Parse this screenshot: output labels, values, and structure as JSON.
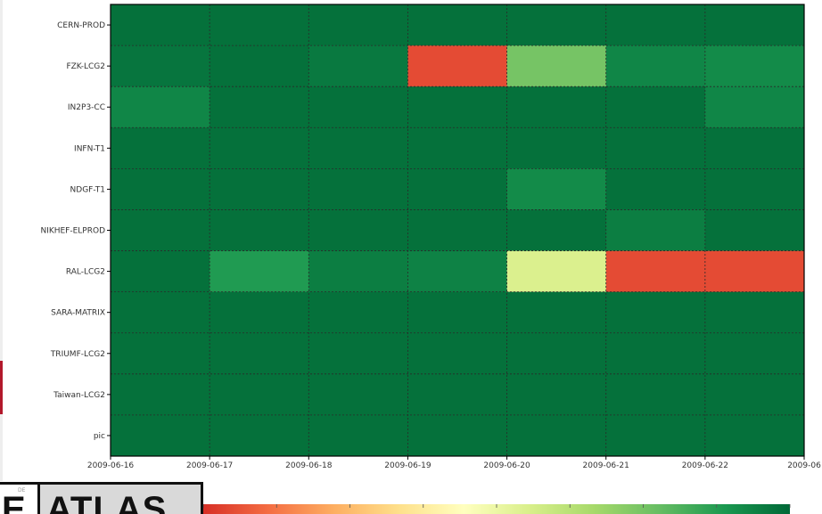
{
  "chart_data": {
    "type": "heatmap",
    "title_fragment": "...",
    "y_categories": [
      "CERN-PROD",
      "FZK-LCG2",
      "IN2P3-CC",
      "INFN-T1",
      "NDGF-T1",
      "NIKHEF-ELPROD",
      "RAL-LCG2",
      "SARA-MATRIX",
      "TRIUMF-LCG2",
      "Taiwan-LCG2",
      "pic"
    ],
    "x_ticks": [
      "2009-06-16",
      "2009-06-17",
      "2009-06-18",
      "2009-06-19",
      "2009-06-20",
      "2009-06-21",
      "2009-06-22",
      "2009-06"
    ],
    "x_columns": [
      "2009-06-16",
      "2009-06-17",
      "2009-06-18",
      "2009-06-19",
      "2009-06-20",
      "2009-06-21",
      "2009-06-22"
    ],
    "colormap": "RdYlGn",
    "value_range": [
      0,
      100
    ],
    "values": [
      [
        98,
        98,
        98,
        98,
        98,
        98,
        98
      ],
      [
        97,
        98,
        96,
        5,
        75,
        93,
        92
      ],
      [
        93,
        98,
        98,
        98,
        98,
        98,
        93
      ],
      [
        98,
        98,
        98,
        98,
        98,
        98,
        98
      ],
      [
        98,
        98,
        98,
        98,
        92,
        98,
        98
      ],
      [
        98,
        98,
        98,
        98,
        98,
        95,
        98
      ],
      [
        98,
        88,
        95,
        94,
        55,
        5,
        5
      ],
      [
        98,
        98,
        98,
        98,
        98,
        98,
        98
      ],
      [
        98,
        98,
        98,
        98,
        98,
        98,
        98
      ],
      [
        98,
        98,
        98,
        98,
        98,
        98,
        98
      ],
      [
        98,
        98,
        98,
        98,
        98,
        98,
        98
      ]
    ],
    "grid": true
  },
  "colorbar": {
    "stops": [
      "#d73027",
      "#f46d43",
      "#fdae61",
      "#fee08b",
      "#ffffbf",
      "#d9ef8b",
      "#a6d96a",
      "#66bd63",
      "#1a9850",
      "#006837"
    ]
  },
  "footer": {
    "logo_text": "ATLAS",
    "left_fragment": "E",
    "tiny_label": "DE"
  },
  "colors": {
    "frame": "#000000",
    "gridline": "#2a2a2a"
  }
}
